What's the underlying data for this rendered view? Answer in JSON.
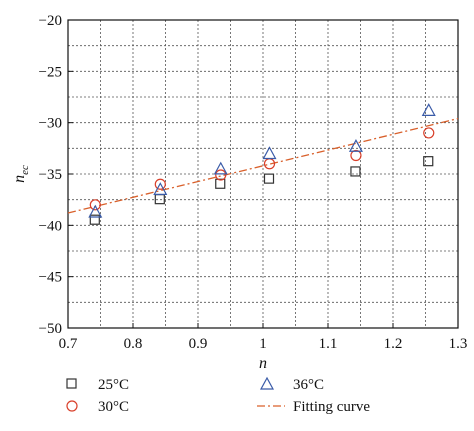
{
  "chart_data": {
    "type": "scatter",
    "xlabel": "n",
    "ylabel_main": "n",
    "ylabel_sub": "ec",
    "xlim": [
      0.7,
      1.3
    ],
    "ylim": [
      -50,
      -20
    ],
    "xticks": [
      0.7,
      0.8,
      0.9,
      1.0,
      1.1,
      1.2,
      1.3
    ],
    "xtick_labels": [
      "0.7",
      "0.8",
      "0.9",
      "1",
      "1.1",
      "1.2",
      "1.3"
    ],
    "yticks": [
      -20,
      -25,
      -30,
      -35,
      -40,
      -45,
      -50
    ],
    "ytick_labels": [
      "−20",
      "−25",
      "−30",
      "−35",
      "−40",
      "−45",
      "−50"
    ],
    "grid": true,
    "legend_position": "bottom",
    "series": [
      {
        "name": "25°C",
        "marker": "square",
        "color": "#333333",
        "x": [
          0.742,
          0.842,
          0.935,
          1.01,
          1.143,
          1.255
        ],
        "y": [
          -39.5,
          -37.5,
          -36.0,
          -35.5,
          -34.8,
          -33.8
        ]
      },
      {
        "name": "30°C",
        "marker": "circle",
        "color": "#d9402b",
        "x": [
          0.742,
          0.842,
          0.935,
          1.01,
          1.143,
          1.255
        ],
        "y": [
          -38.0,
          -36.0,
          -35.1,
          -34.0,
          -33.2,
          -31.0
        ]
      },
      {
        "name": "36°C",
        "marker": "triangle",
        "color": "#3a5ba8",
        "x": [
          0.742,
          0.842,
          0.935,
          1.01,
          1.143,
          1.255
        ],
        "y": [
          -38.7,
          -36.5,
          -34.5,
          -33.0,
          -32.3,
          -28.8
        ]
      },
      {
        "name": "Fitting curve",
        "marker": "line",
        "color": "#d9602b",
        "x": [
          0.7,
          1.3
        ],
        "y": [
          -38.8,
          -29.6
        ]
      }
    ]
  }
}
